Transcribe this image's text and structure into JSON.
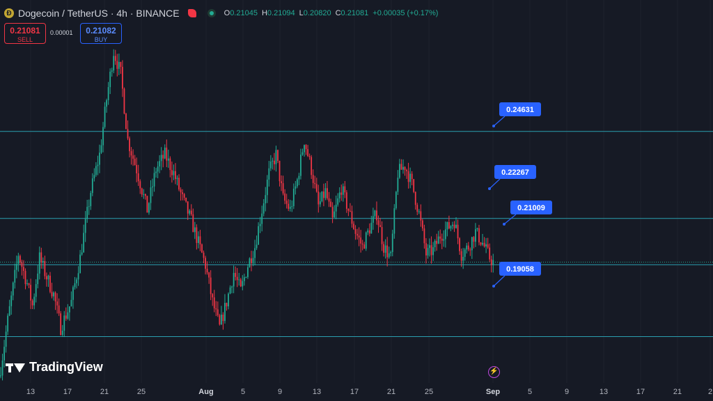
{
  "header": {
    "symbol": "Dogecoin / TetherUS · 4h · BINANCE",
    "coin_glyph": "Ð",
    "o_label": "O",
    "o_value": "0.21045",
    "h_label": "H",
    "h_value": "0.21094",
    "l_label": "L",
    "l_value": "0.20820",
    "c_label": "C",
    "c_value": "0.21081",
    "change": "+0.00035 (+0.17%)"
  },
  "trade": {
    "sell_price": "0.21081",
    "sell_label": "SELL",
    "spread": "0.00001",
    "buy_price": "0.21082",
    "buy_label": "BUY"
  },
  "brand": {
    "name": "TradingView"
  },
  "colors": {
    "up": "#22ab94",
    "down": "#f23645",
    "level": "#2a9fb0",
    "callout": "#2962ff",
    "bg": "#161a25"
  },
  "chart_data": {
    "type": "candlestick",
    "ylim": [
      0.178,
      0.282
    ],
    "x_ticks": [
      "13",
      "17",
      "21",
      "25",
      "Aug",
      "5",
      "9",
      "13",
      "17",
      "21",
      "25",
      "Sep",
      "5",
      "9",
      "13",
      "17",
      "21",
      "2"
    ],
    "levels": [
      {
        "label": "0.24631",
        "value": 0.24631
      },
      {
        "label": "0.22267",
        "value": 0.22267
      },
      {
        "label": "0.21009",
        "value": 0.21009
      },
      {
        "label": "0.19058",
        "value": 0.19058
      }
    ],
    "last_price": 0.21081,
    "path_keypoints": [
      [
        0,
        0.182
      ],
      [
        4,
        0.195
      ],
      [
        10,
        0.213
      ],
      [
        15,
        0.205
      ],
      [
        18,
        0.199
      ],
      [
        22,
        0.212
      ],
      [
        25,
        0.208
      ],
      [
        30,
        0.202
      ],
      [
        34,
        0.193
      ],
      [
        40,
        0.2
      ],
      [
        45,
        0.212
      ],
      [
        51,
        0.23
      ],
      [
        56,
        0.24
      ],
      [
        60,
        0.255
      ],
      [
        64,
        0.268
      ],
      [
        68,
        0.262
      ],
      [
        72,
        0.244
      ],
      [
        77,
        0.236
      ],
      [
        83,
        0.225
      ],
      [
        88,
        0.236
      ],
      [
        93,
        0.24
      ],
      [
        98,
        0.235
      ],
      [
        103,
        0.228
      ],
      [
        108,
        0.222
      ],
      [
        112,
        0.216
      ],
      [
        116,
        0.21
      ],
      [
        120,
        0.2
      ],
      [
        124,
        0.193
      ],
      [
        128,
        0.2
      ],
      [
        132,
        0.208
      ],
      [
        136,
        0.203
      ],
      [
        140,
        0.21
      ],
      [
        144,
        0.215
      ],
      [
        148,
        0.225
      ],
      [
        152,
        0.235
      ],
      [
        156,
        0.24
      ],
      [
        160,
        0.228
      ],
      [
        164,
        0.225
      ],
      [
        168,
        0.233
      ],
      [
        172,
        0.244
      ],
      [
        176,
        0.236
      ],
      [
        180,
        0.226
      ],
      [
        184,
        0.23
      ],
      [
        188,
        0.222
      ],
      [
        193,
        0.231
      ],
      [
        197,
        0.225
      ],
      [
        201,
        0.219
      ],
      [
        205,
        0.215
      ],
      [
        209,
        0.22
      ],
      [
        213,
        0.224
      ],
      [
        217,
        0.215
      ],
      [
        221,
        0.212
      ],
      [
        225,
        0.235
      ],
      [
        229,
        0.237
      ],
      [
        233,
        0.232
      ],
      [
        237,
        0.224
      ],
      [
        241,
        0.213
      ],
      [
        245,
        0.214
      ],
      [
        249,
        0.218
      ],
      [
        253,
        0.22
      ],
      [
        257,
        0.222
      ],
      [
        261,
        0.213
      ],
      [
        265,
        0.215
      ],
      [
        269,
        0.219
      ],
      [
        273,
        0.216
      ],
      [
        277,
        0.212
      ],
      [
        279,
        0.2108
      ]
    ]
  }
}
